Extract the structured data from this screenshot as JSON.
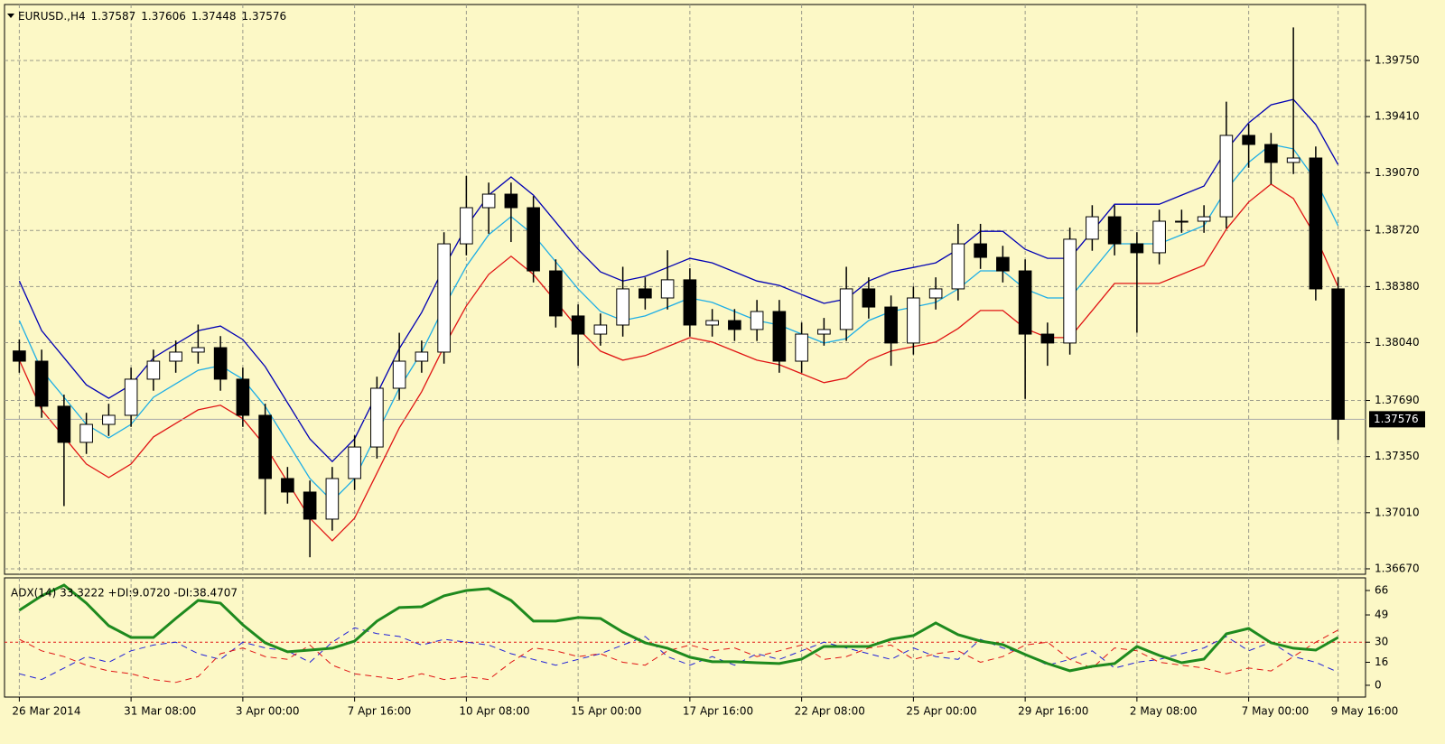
{
  "chart_data": {
    "type": "candlestick",
    "symbol": "EURUSD.,H4",
    "header_values": [
      1.37587,
      1.37606,
      1.37448,
      1.37576
    ],
    "background": "#fcf8c6",
    "grid": true,
    "categories": [
      "26 Mar 2014",
      null,
      null,
      null,
      null,
      "31 Mar 08:00",
      null,
      null,
      null,
      null,
      "3 Apr 00:00",
      null,
      null,
      null,
      null,
      "7 Apr 16:00",
      null,
      null,
      null,
      null,
      "10 Apr 08:00",
      null,
      null,
      null,
      null,
      "15 Apr 00:00",
      null,
      null,
      null,
      null,
      "17 Apr 16:00",
      null,
      null,
      null,
      null,
      "22 Apr 08:00",
      null,
      null,
      null,
      null,
      "25 Apr 00:00",
      null,
      null,
      null,
      null,
      "29 Apr 16:00",
      null,
      null,
      null,
      null,
      "2 May 08:00",
      null,
      null,
      null,
      null,
      "7 May 00:00",
      null,
      null,
      null,
      "9 May 16:00"
    ],
    "open": [
      1.3799,
      1.37928,
      1.37655,
      1.37436,
      1.37545,
      1.376,
      1.37819,
      1.37928,
      1.37983,
      1.3801,
      1.37819,
      1.376,
      1.37217,
      1.37135,
      1.36971,
      1.37217,
      1.37408,
      1.37764,
      1.37928,
      1.37983,
      1.38639,
      1.38858,
      1.3894,
      1.38858,
      1.38475,
      1.38202,
      1.38092,
      1.38147,
      1.38366,
      1.38311,
      1.38421,
      1.38147,
      1.38174,
      1.3812,
      1.38229,
      1.37928,
      1.38092,
      1.3812,
      1.38366,
      1.38256,
      1.38038,
      1.38311,
      1.38366,
      1.38639,
      1.38557,
      1.38475,
      1.38092,
      1.38038,
      1.38667,
      1.38803,
      1.38639,
      1.38585,
      1.38776,
      1.38776,
      1.38803,
      1.39296,
      1.39241,
      1.39132,
      1.39159,
      1.38366
    ],
    "high": [
      1.3806,
      1.37998,
      1.37725,
      1.37615,
      1.3767,
      1.37889,
      1.37998,
      1.38053,
      1.3815,
      1.3808,
      1.37889,
      1.3767,
      1.37287,
      1.37205,
      1.37287,
      1.37478,
      1.37834,
      1.381,
      1.38053,
      1.38709,
      1.3905,
      1.3901,
      1.3901,
      1.38928,
      1.38545,
      1.38272,
      1.38217,
      1.385,
      1.38436,
      1.386,
      1.38491,
      1.38244,
      1.38244,
      1.38299,
      1.38299,
      1.38162,
      1.3819,
      1.385,
      1.38436,
      1.38326,
      1.38381,
      1.38436,
      1.3876,
      1.3876,
      1.38627,
      1.38545,
      1.38162,
      1.38737,
      1.38873,
      1.38873,
      1.38709,
      1.38846,
      1.38846,
      1.38873,
      1.395,
      1.39366,
      1.39311,
      1.3995,
      1.39229,
      1.38436
    ],
    "low": [
      1.37858,
      1.37585,
      1.3705,
      1.37366,
      1.37475,
      1.3753,
      1.37749,
      1.37858,
      1.37913,
      1.37749,
      1.3753,
      1.37,
      1.37065,
      1.3674,
      1.36901,
      1.37147,
      1.37338,
      1.37694,
      1.37858,
      1.37913,
      1.38569,
      1.387,
      1.3865,
      1.38405,
      1.38132,
      1.379,
      1.38022,
      1.38077,
      1.38241,
      1.38241,
      1.38077,
      1.38077,
      1.3805,
      1.3805,
      1.37858,
      1.37858,
      1.38022,
      1.3805,
      1.38186,
      1.379,
      1.37968,
      1.38241,
      1.38296,
      1.38487,
      1.38405,
      1.377,
      1.379,
      1.37968,
      1.38597,
      1.38569,
      1.381,
      1.38515,
      1.38706,
      1.38706,
      1.38733,
      1.391,
      1.39,
      1.39062,
      1.38296,
      1.3745
    ],
    "close": [
      1.37928,
      1.37655,
      1.37436,
      1.37545,
      1.376,
      1.37819,
      1.37928,
      1.37983,
      1.3801,
      1.37819,
      1.376,
      1.37217,
      1.37135,
      1.36971,
      1.37217,
      1.37408,
      1.37764,
      1.37928,
      1.37983,
      1.38639,
      1.38858,
      1.3894,
      1.38858,
      1.38475,
      1.38202,
      1.38092,
      1.38147,
      1.38366,
      1.38311,
      1.38421,
      1.38147,
      1.38174,
      1.3812,
      1.38229,
      1.37928,
      1.38092,
      1.3812,
      1.38366,
      1.38256,
      1.38038,
      1.38311,
      1.38366,
      1.38639,
      1.38557,
      1.38475,
      1.38092,
      1.38038,
      1.38667,
      1.38803,
      1.38639,
      1.38585,
      1.38776,
      1.38776,
      1.38803,
      1.39296,
      1.39241,
      1.39132,
      1.39159,
      1.38366,
      1.37576
    ],
    "bands": {
      "upper": {
        "color": "#0000b4",
        "values": [
          1.38414,
          1.38113,
          1.37949,
          1.37785,
          1.37703,
          1.37785,
          1.37949,
          1.38031,
          1.38113,
          1.38141,
          1.38059,
          1.37895,
          1.37676,
          1.37457,
          1.3732,
          1.37457,
          1.3773,
          1.38004,
          1.38223,
          1.38496,
          1.38743,
          1.38934,
          1.39044,
          1.38934,
          1.3877,
          1.38606,
          1.38469,
          1.38414,
          1.38442,
          1.38496,
          1.38551,
          1.38524,
          1.38469,
          1.38414,
          1.38387,
          1.38332,
          1.38278,
          1.38305,
          1.38414,
          1.38469,
          1.38496,
          1.38524,
          1.38606,
          1.38715,
          1.38715,
          1.38606,
          1.38551,
          1.38551,
          1.38715,
          1.38879,
          1.38879,
          1.38879,
          1.38934,
          1.38989,
          1.39208,
          1.39372,
          1.39481,
          1.39514,
          1.39362,
          1.39119
        ]
      },
      "middle": {
        "color": "#1eaee6",
        "values": [
          1.38174,
          1.37873,
          1.37709,
          1.37545,
          1.37463,
          1.37545,
          1.37709,
          1.37791,
          1.37873,
          1.37901,
          1.37819,
          1.37655,
          1.37436,
          1.37217,
          1.3708,
          1.37217,
          1.3749,
          1.37764,
          1.37983,
          1.38256,
          1.38503,
          1.38694,
          1.38804,
          1.38694,
          1.3853,
          1.38366,
          1.38229,
          1.38174,
          1.38202,
          1.38256,
          1.38311,
          1.38284,
          1.38229,
          1.38174,
          1.38147,
          1.38092,
          1.38038,
          1.38065,
          1.38174,
          1.38229,
          1.38256,
          1.38284,
          1.38366,
          1.38475,
          1.38475,
          1.38366,
          1.38311,
          1.38311,
          1.38475,
          1.38639,
          1.38639,
          1.38639,
          1.38694,
          1.38749,
          1.38968,
          1.39132,
          1.39241,
          1.39214,
          1.39022,
          1.38749
        ]
      },
      "lower": {
        "color": "#e01414",
        "values": [
          1.37934,
          1.37633,
          1.37469,
          1.37305,
          1.37223,
          1.37305,
          1.37469,
          1.37551,
          1.37633,
          1.37661,
          1.37579,
          1.37415,
          1.37196,
          1.36977,
          1.3684,
          1.36977,
          1.3725,
          1.37524,
          1.37743,
          1.38016,
          1.38263,
          1.38454,
          1.38564,
          1.38454,
          1.3829,
          1.38126,
          1.37989,
          1.37934,
          1.37962,
          1.38016,
          1.38071,
          1.38044,
          1.37989,
          1.37934,
          1.37907,
          1.37852,
          1.37798,
          1.37825,
          1.37934,
          1.37989,
          1.38016,
          1.38044,
          1.38126,
          1.38235,
          1.38235,
          1.38126,
          1.38071,
          1.38071,
          1.38235,
          1.38399,
          1.38399,
          1.38399,
          1.38454,
          1.38509,
          1.38728,
          1.38892,
          1.39001,
          1.38914,
          1.38682,
          1.38379
        ]
      }
    },
    "current_price": 1.37576,
    "ylim": [
      1.36637,
      1.40089
    ],
    "yticks": [
      {
        "value": 1.3667,
        "label": "1.36670"
      },
      {
        "value": 1.3701,
        "label": "1.37010"
      },
      {
        "value": 1.3735,
        "label": "1.37350"
      },
      {
        "value": 1.3769,
        "label": "1.37690"
      },
      {
        "value": 1.3804,
        "label": "1.38040"
      },
      {
        "value": 1.3838,
        "label": "1.38380"
      },
      {
        "value": 1.3872,
        "label": "1.38720"
      },
      {
        "value": 1.3907,
        "label": "1.39070"
      },
      {
        "value": 1.3941,
        "label": "1.39410"
      },
      {
        "value": 1.3975,
        "label": "1.39750"
      }
    ],
    "indicator": {
      "label": "ADX(14) 33.3222 +DI:9.0720 -DI:38.4707",
      "ylim": [
        -8.2,
        74.8
      ],
      "yticks": [
        0,
        16,
        30,
        49,
        66
      ],
      "level": 30,
      "level_color": "#e01414",
      "lines": [
        {
          "color": "#1e8a1e",
          "width": 3,
          "values": [
            52.2,
            62.3,
            69.8,
            57.2,
            41.5,
            33.3,
            33.3,
            46.5,
            59.1,
            57.2,
            42.1,
            29.6,
            23.3,
            24.5,
            25.8,
            30.8,
            44.7,
            54.1,
            54.7,
            62.3,
            66.0,
            67.3,
            59.1,
            44.7,
            44.7,
            47.2,
            46.5,
            37.1,
            29.6,
            25.8,
            19.5,
            16.4,
            16.4,
            15.7,
            15.1,
            18.2,
            27.0,
            27.0,
            27.0,
            32.1,
            34.6,
            43.4,
            35.2,
            30.8,
            28.3,
            21.4,
            15.1,
            10.1,
            13.2,
            15.1,
            27.0,
            20.8,
            15.7,
            18.2,
            35.8,
            39.6,
            29.6,
            25.8,
            24.5,
            33.3222
          ]
        },
        {
          "color": "#2020d8",
          "width": 1,
          "values": [
            8,
            4,
            12,
            20,
            16,
            24,
            28,
            30,
            22,
            18,
            30,
            26,
            24,
            16,
            30,
            40,
            36,
            34,
            28,
            32,
            30,
            28,
            22,
            18,
            14,
            18,
            22,
            28,
            34,
            20,
            14,
            20,
            14,
            22,
            18,
            24,
            30,
            26,
            22,
            18,
            26,
            20,
            18,
            32,
            26,
            22,
            14,
            18,
            24,
            12,
            16,
            18,
            22,
            26,
            34,
            24,
            30,
            20,
            16,
            9.072
          ]
        },
        {
          "color": "#e01414",
          "width": 1,
          "values": [
            32,
            24,
            20,
            14,
            10,
            8,
            4,
            2,
            6,
            22,
            26,
            20,
            18,
            28,
            14,
            8,
            6,
            4,
            8,
            4,
            6,
            4,
            16,
            26,
            24,
            20,
            22,
            16,
            14,
            24,
            28,
            24,
            26,
            20,
            24,
            28,
            18,
            20,
            26,
            28,
            18,
            22,
            24,
            16,
            20,
            28,
            30,
            18,
            12,
            26,
            24,
            16,
            14,
            12,
            8,
            12,
            10,
            20,
            30,
            38.4707
          ]
        }
      ]
    }
  }
}
